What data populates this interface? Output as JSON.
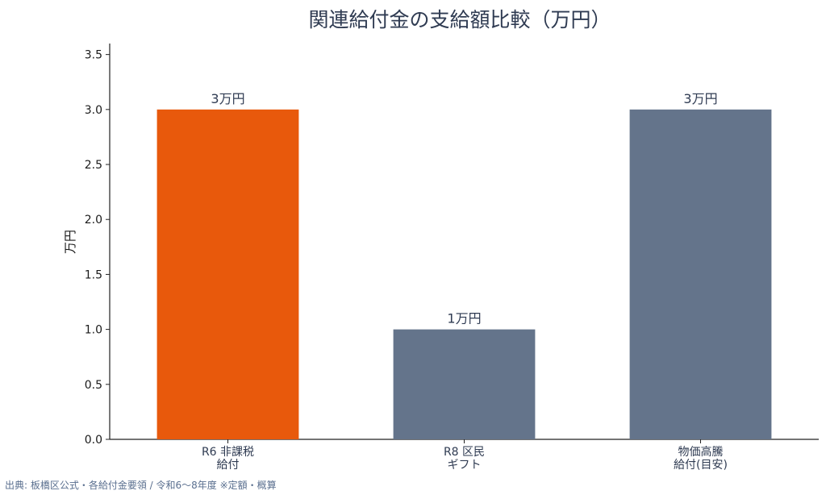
{
  "chart_data": {
    "type": "bar",
    "title": "関連給付金の支給額比較（万円）",
    "xlabel": "",
    "ylabel": "万円",
    "categories": [
      [
        "R6 非課税",
        "給付"
      ],
      [
        "R8 区民",
        "ギフト"
      ],
      [
        "物価高騰",
        "給付(目安)"
      ]
    ],
    "values": [
      3,
      1,
      3
    ],
    "data_labels": [
      "3万円",
      "1万円",
      "3万円"
    ],
    "bar_colors": [
      "#e8590c",
      "#64748b",
      "#64748b"
    ],
    "ylim": [
      0,
      3.6
    ],
    "yticks": [
      "0.0",
      "0.5",
      "1.0",
      "1.5",
      "2.0",
      "2.5",
      "3.0",
      "3.5"
    ],
    "grid": false,
    "legend": false
  },
  "source_note": "出典: 板橋区公式・各給付金要領 / 令和6〜8年度 ※定額・概算"
}
